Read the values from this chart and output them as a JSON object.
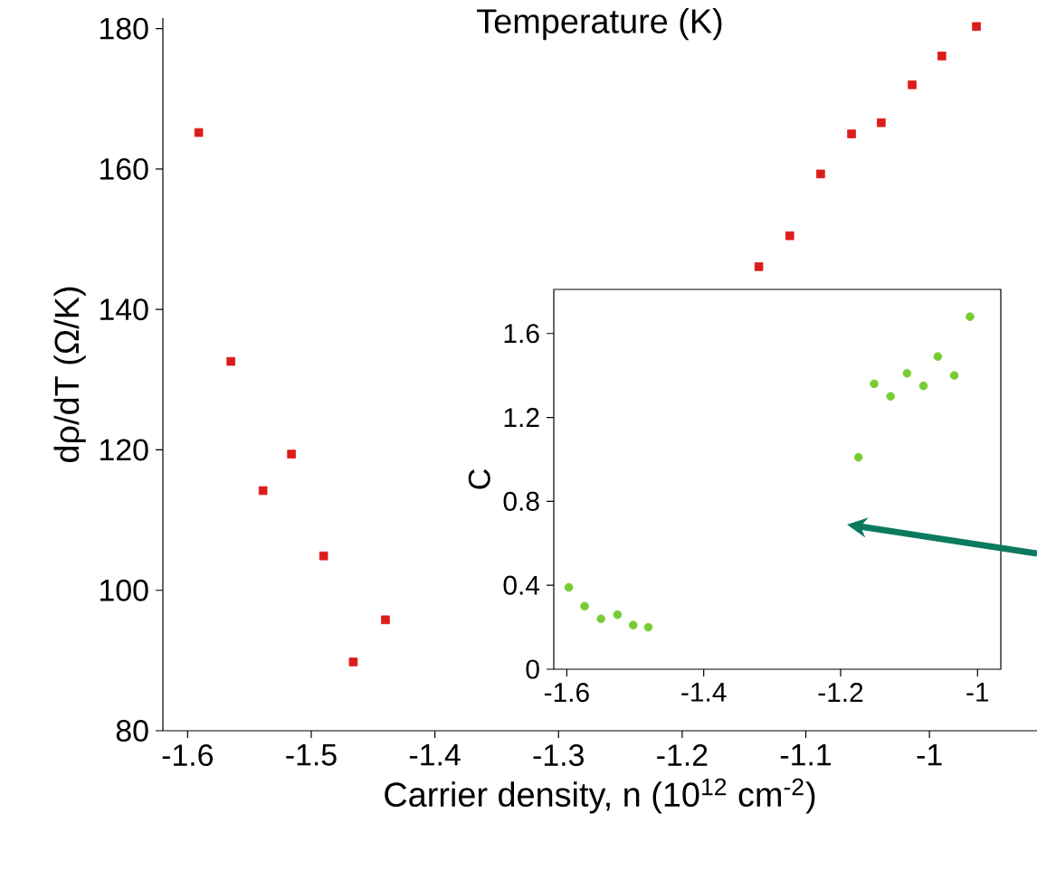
{
  "chart_data": [
    {
      "type": "scatter",
      "title": "Temperature (K)",
      "xlabel": "Carrier density, n (10$^{12}$ cm$^{-2}$)",
      "ylabel": "dρ/dT (Ω/K)",
      "x": [
        -1.591,
        -1.565,
        -1.539,
        -1.516,
        -1.49,
        -1.466,
        -1.44,
        -1.138,
        -1.113,
        -1.088,
        -1.063,
        -1.039,
        -1.014,
        -0.99,
        -0.962
      ],
      "values": [
        165.2,
        132.6,
        114.2,
        119.4,
        104.9,
        89.8,
        95.8,
        146.1,
        150.5,
        159.3,
        165.0,
        166.6,
        172.0,
        176.1,
        180.3
      ],
      "color": "#dd1c1c",
      "marker": "square",
      "grid": false,
      "xlim": [
        -1.62,
        -0.913
      ],
      "ylim": [
        80,
        181.5
      ],
      "xticks": [
        -1.6,
        -1.5,
        -1.4,
        -1.3,
        -1.2,
        -1.1,
        {
          "value": -1.0,
          "label": "-1"
        }
      ],
      "yticks": [
        80,
        100,
        120,
        140,
        160,
        180
      ]
    },
    {
      "type": "scatter",
      "ylabel": "C",
      "x": [
        -1.597,
        -1.574,
        -1.55,
        -1.526,
        -1.503,
        -1.481,
        -1.174,
        -1.151,
        -1.127,
        -1.103,
        -1.079,
        -1.058,
        -1.034,
        -1.011
      ],
      "values": [
        0.39,
        0.3,
        0.24,
        0.26,
        0.21,
        0.2,
        1.01,
        1.36,
        1.3,
        1.41,
        1.35,
        1.49,
        1.4,
        1.68
      ],
      "color": "#77cc33",
      "marker": "circle",
      "grid": false,
      "xlim": [
        -1.619,
        -0.966
      ],
      "ylim": [
        0,
        1.81
      ],
      "xticks": [
        -1.6,
        -1.4,
        -1.2,
        {
          "value": -1.0,
          "label": "-1"
        }
      ],
      "yticks": [
        0,
        0.4,
        0.8,
        1.2,
        1.6
      ]
    }
  ]
}
